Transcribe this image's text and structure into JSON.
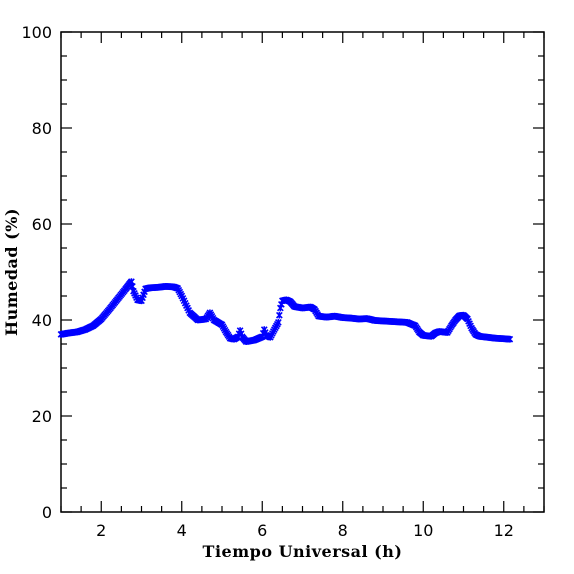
{
  "chart_data": {
    "type": "scatter",
    "title": "",
    "xlabel": "Tiempo Universal (h)",
    "ylabel": "Humedad (%)",
    "xlim": [
      1,
      13
    ],
    "ylim": [
      0,
      100
    ],
    "x_ticks": [
      2,
      4,
      6,
      8,
      10,
      12
    ],
    "y_ticks": [
      0,
      20,
      40,
      60,
      80,
      100
    ],
    "x_tick_labels": [
      "2",
      "4",
      "6",
      "8",
      "10",
      "12"
    ],
    "y_tick_labels": [
      "0",
      "20",
      "40",
      "60",
      "80",
      "100"
    ],
    "marker": "asterisk",
    "marker_color": "#0000ff",
    "grid": false,
    "series": [
      {
        "points": [
          [
            1.0,
            37.0
          ],
          [
            1.2,
            37.3
          ],
          [
            1.4,
            37.5
          ],
          [
            1.6,
            38.0
          ],
          [
            1.8,
            38.8
          ],
          [
            2.0,
            40.2
          ],
          [
            2.2,
            42.2
          ],
          [
            2.4,
            44.3
          ],
          [
            2.6,
            46.4
          ],
          [
            2.7,
            47.5
          ],
          [
            2.75,
            48.0
          ],
          [
            2.8,
            46.0
          ],
          [
            2.9,
            44.2
          ],
          [
            3.0,
            44.0
          ],
          [
            3.1,
            46.5
          ],
          [
            3.2,
            46.7
          ],
          [
            3.4,
            46.8
          ],
          [
            3.6,
            47.0
          ],
          [
            3.8,
            46.9
          ],
          [
            3.9,
            46.6
          ],
          [
            4.0,
            45.0
          ],
          [
            4.2,
            41.5
          ],
          [
            4.4,
            40.0
          ],
          [
            4.6,
            40.2
          ],
          [
            4.7,
            41.5
          ],
          [
            4.8,
            40.0
          ],
          [
            5.0,
            39.0
          ],
          [
            5.1,
            37.5
          ],
          [
            5.2,
            36.2
          ],
          [
            5.3,
            36.0
          ],
          [
            5.4,
            36.5
          ],
          [
            5.45,
            37.8
          ],
          [
            5.5,
            36.5
          ],
          [
            5.6,
            35.5
          ],
          [
            5.8,
            35.8
          ],
          [
            6.0,
            36.5
          ],
          [
            6.05,
            38.0
          ],
          [
            6.1,
            36.8
          ],
          [
            6.2,
            36.4
          ],
          [
            6.3,
            38.0
          ],
          [
            6.4,
            39.5
          ],
          [
            6.45,
            42.5
          ],
          [
            6.5,
            44.0
          ],
          [
            6.6,
            44.2
          ],
          [
            6.7,
            43.8
          ],
          [
            6.8,
            42.8
          ],
          [
            7.0,
            42.5
          ],
          [
            7.2,
            42.7
          ],
          [
            7.3,
            42.2
          ],
          [
            7.4,
            40.8
          ],
          [
            7.6,
            40.6
          ],
          [
            7.8,
            40.8
          ],
          [
            8.0,
            40.5
          ],
          [
            8.2,
            40.4
          ],
          [
            8.4,
            40.2
          ],
          [
            8.6,
            40.3
          ],
          [
            8.8,
            39.9
          ],
          [
            9.0,
            39.8
          ],
          [
            9.2,
            39.7
          ],
          [
            9.4,
            39.6
          ],
          [
            9.6,
            39.5
          ],
          [
            9.8,
            38.8
          ],
          [
            9.9,
            37.5
          ],
          [
            10.0,
            36.8
          ],
          [
            10.2,
            36.6
          ],
          [
            10.3,
            37.3
          ],
          [
            10.4,
            37.6
          ],
          [
            10.6,
            37.4
          ],
          [
            10.7,
            38.8
          ],
          [
            10.8,
            40.0
          ],
          [
            10.9,
            40.9
          ],
          [
            11.0,
            41.0
          ],
          [
            11.1,
            40.2
          ],
          [
            11.2,
            38.3
          ],
          [
            11.3,
            37.0
          ],
          [
            11.4,
            36.6
          ],
          [
            11.6,
            36.4
          ],
          [
            11.8,
            36.2
          ],
          [
            12.0,
            36.1
          ],
          [
            12.15,
            36.0
          ]
        ]
      }
    ]
  }
}
